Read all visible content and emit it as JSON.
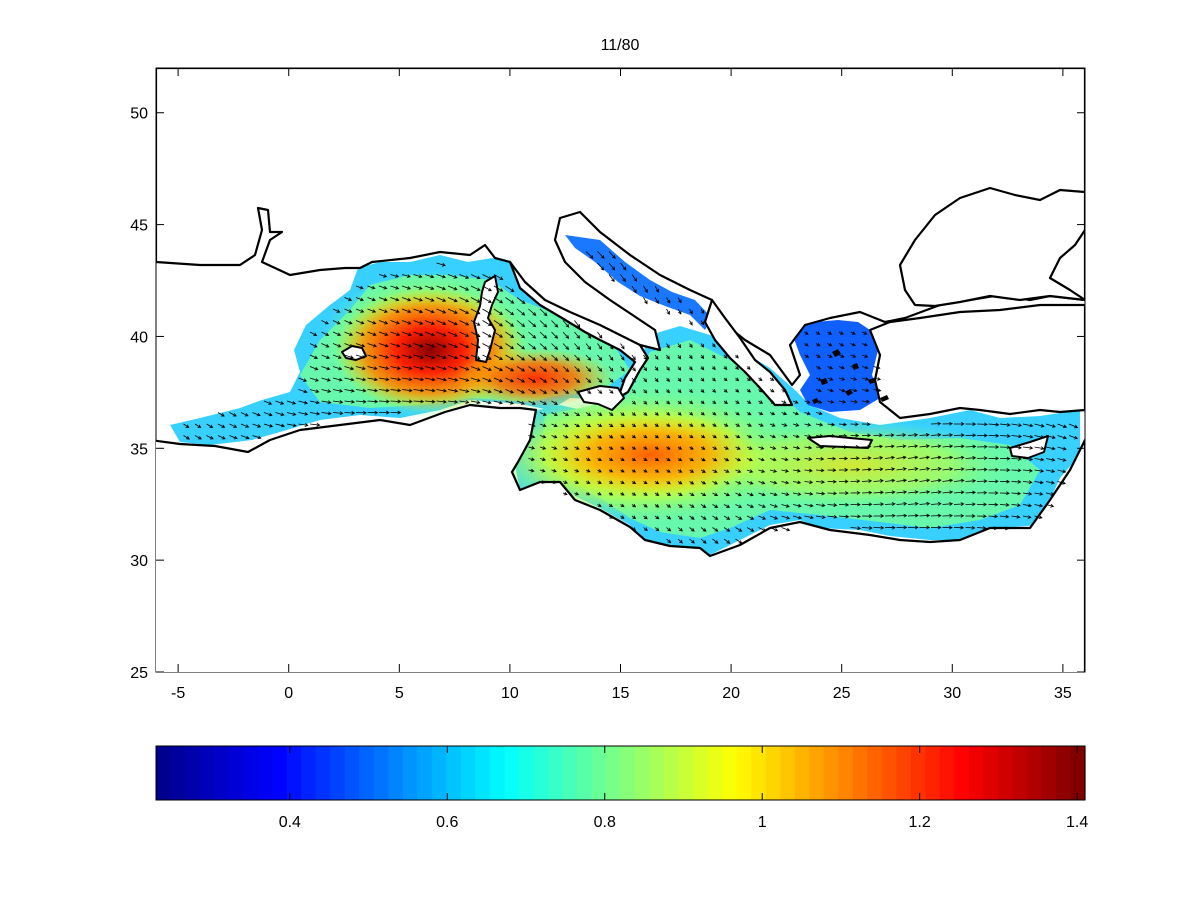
{
  "title": "11/80",
  "map": {
    "xlim": [
      -6,
      36
    ],
    "ylim": [
      25,
      52
    ],
    "x_ticks": [
      -5,
      0,
      5,
      10,
      15,
      20,
      25,
      30,
      35
    ],
    "y_ticks": [
      25,
      30,
      35,
      40,
      45,
      50
    ],
    "field_description": "sea-surface field magnitude over the Mediterranean with direction vectors",
    "maxima": [
      {
        "lon": 6.5,
        "lat": 39.0,
        "value": 1.4
      },
      {
        "lon": 11.5,
        "lat": 37.8,
        "value": 1.3
      },
      {
        "lon": 16.5,
        "lat": 34.8,
        "value": 1.2
      }
    ],
    "vector_direction": "predominantly toward south-east"
  },
  "colorbar": {
    "colormap": "jet",
    "range": [
      0.23,
      1.41
    ],
    "ticks": [
      0.4,
      0.6,
      0.8,
      1,
      1.2,
      1.4
    ],
    "tick_labels": [
      "0.4",
      "0.6",
      "0.8",
      "1",
      "1.2",
      "1.4"
    ]
  },
  "colors": {
    "jet_stops": [
      "#00008f",
      "#0000ff",
      "#0080ff",
      "#00ffff",
      "#80ff80",
      "#ffff00",
      "#ff8000",
      "#ff0000",
      "#800000"
    ]
  }
}
